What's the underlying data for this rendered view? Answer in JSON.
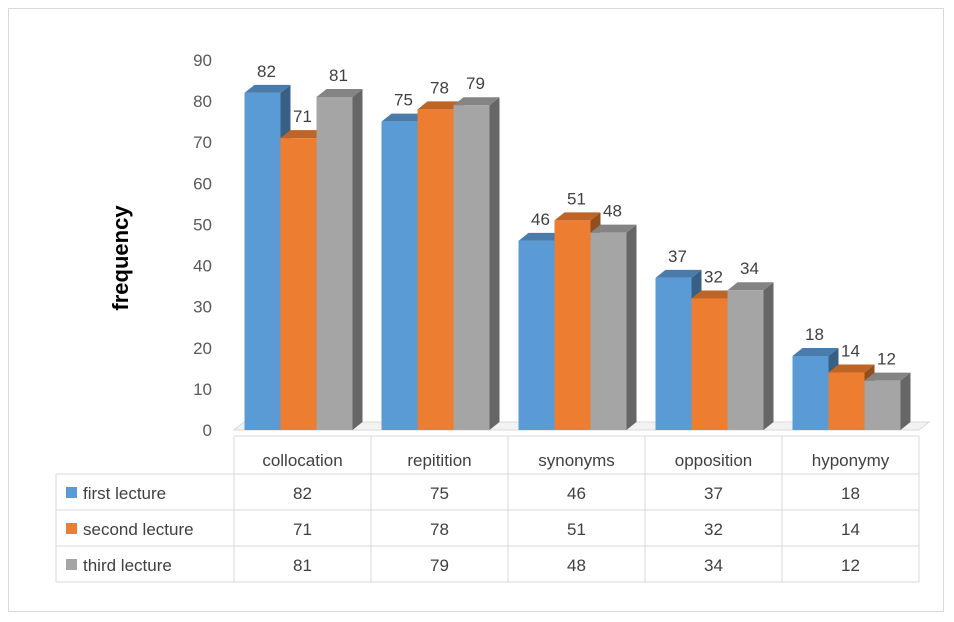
{
  "chart_data": {
    "type": "bar",
    "ylabel": "frequency",
    "ylim": [
      0,
      90
    ],
    "yticks": [
      0,
      10,
      20,
      30,
      40,
      50,
      60,
      70,
      80,
      90
    ],
    "categories": [
      "collocation",
      "repitition",
      "synonyms",
      "opposition",
      "hyponymy"
    ],
    "series": [
      {
        "name": "first lecture",
        "values": [
          82,
          75,
          46,
          37,
          18
        ],
        "color": "#5b9bd5"
      },
      {
        "name": "second lecture",
        "values": [
          71,
          78,
          51,
          32,
          14
        ],
        "color": "#ed7d31"
      },
      {
        "name": "third lecture",
        "values": [
          81,
          79,
          48,
          34,
          12
        ],
        "color": "#a5a5a5"
      }
    ],
    "grid": false,
    "legend": "data table below chart",
    "style": "3d clustered column"
  }
}
